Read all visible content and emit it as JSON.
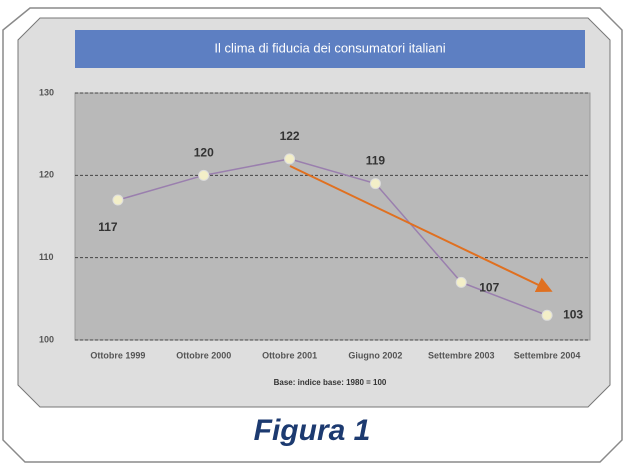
{
  "chart_data": {
    "type": "line",
    "title": "Il clima di fiducia dei consumatori italiani",
    "x_label": "Base: indice base: 1980 = 100",
    "caption": "Figura 1",
    "categories": [
      "Ottobre 1999",
      "Ottobre 2000",
      "Ottobre 2001",
      "Giugno 2002",
      "Settembre 2003",
      "Settembre 2004"
    ],
    "values": [
      117,
      120,
      122,
      119,
      107,
      103
    ],
    "color": "#9a7fae",
    "marker_color": "#f3efc8",
    "ylim": [
      100,
      130
    ],
    "yticks": [
      100,
      110,
      120,
      130
    ],
    "grid": true
  }
}
